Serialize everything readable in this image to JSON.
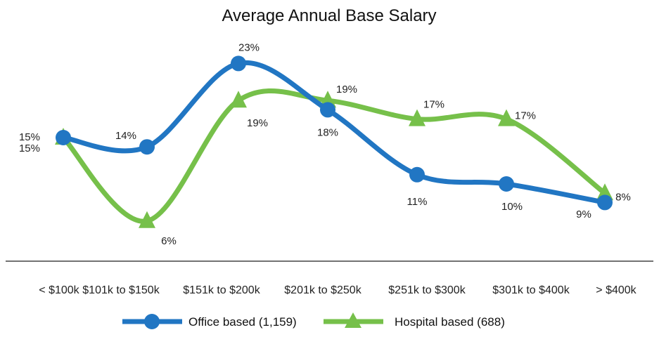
{
  "chart_data": {
    "type": "line",
    "title": "Average Annual Base Salary",
    "xlabel": "",
    "ylabel": "",
    "categories": [
      "< $100k",
      "$101k to $150k",
      "$151k to $200k",
      "$201k to $250k",
      "$251k to $300k",
      "$301k to $400k",
      "> $400k"
    ],
    "ylim": [
      0,
      25
    ],
    "grid": false,
    "legend_position": "bottom",
    "smooth": true,
    "series": [
      {
        "name": "Office based (1,159)",
        "marker": "circle",
        "color": "#2176c3",
        "values": [
          15,
          14,
          23,
          18,
          11,
          10,
          8
        ],
        "labels": [
          "15%",
          "14%",
          "23%",
          "18%",
          "11%",
          "10%",
          "8%"
        ]
      },
      {
        "name": "Hospital based (688)",
        "marker": "triangle",
        "color": "#76c04a",
        "values": [
          15,
          6,
          19,
          19,
          17,
          17,
          9
        ],
        "labels": [
          "15%",
          "6%",
          "19%",
          "19%",
          "17%",
          "17%",
          "9%"
        ]
      }
    ]
  }
}
